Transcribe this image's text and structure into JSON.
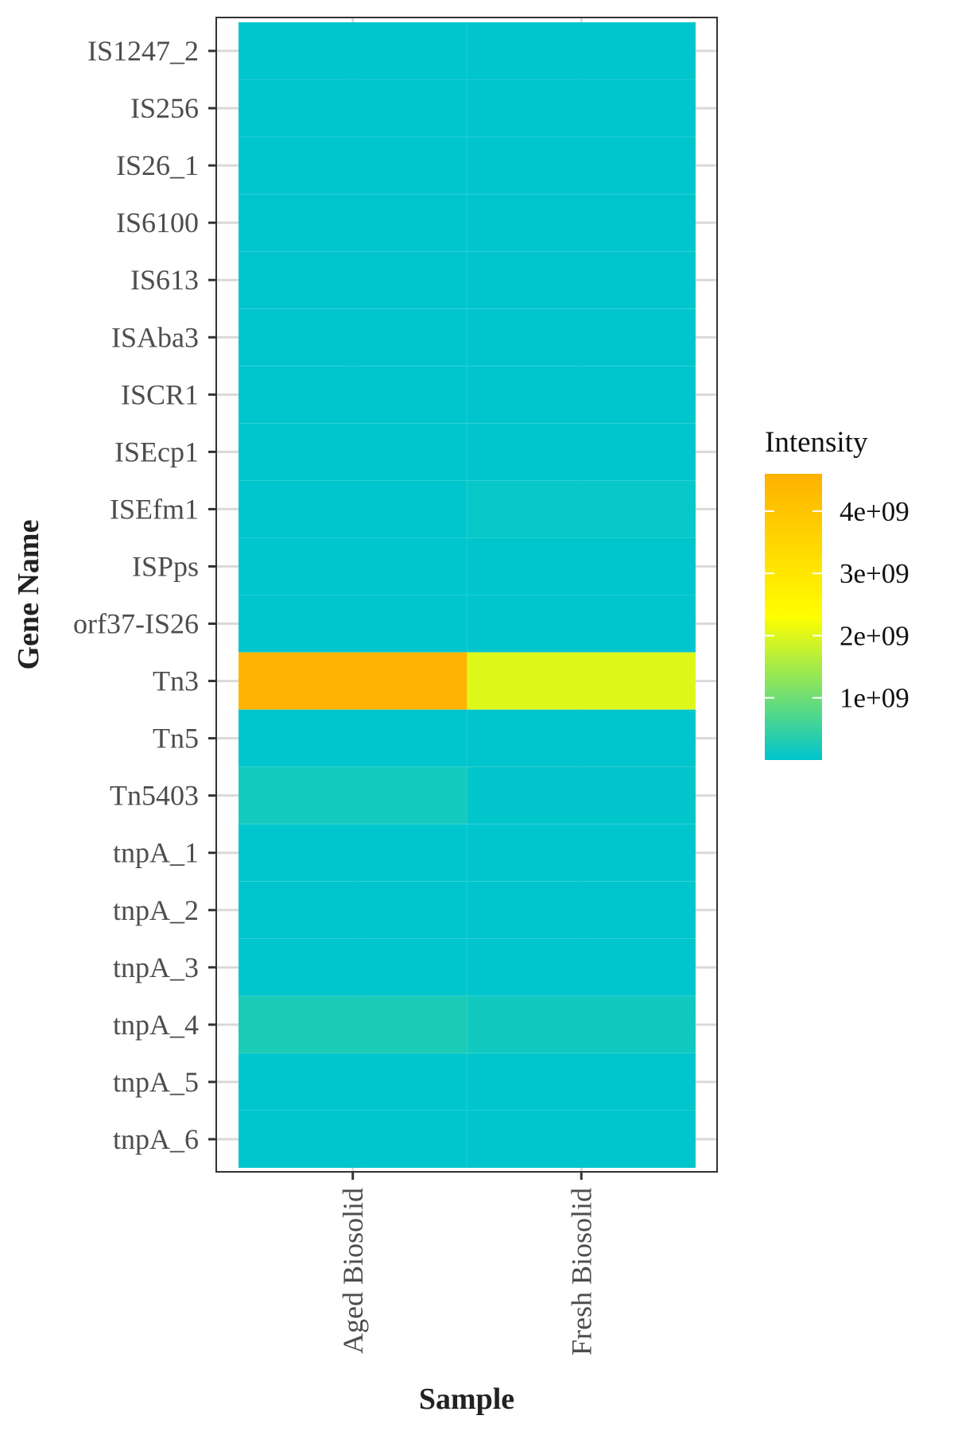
{
  "chart_data": {
    "type": "heatmap",
    "xlabel": "Sample",
    "ylabel": "Gene Name",
    "x": [
      "Aged Biosolid",
      "Fresh Biosolid"
    ],
    "y": [
      "IS1247_2",
      "IS256",
      "IS26_1",
      "IS6100",
      "IS613",
      "ISAba3",
      "ISCR1",
      "ISEcp1",
      "ISEfm1",
      "ISPps",
      "orf37-IS26",
      "Tn3",
      "Tn5",
      "Tn5403",
      "tnpA_1",
      "tnpA_2",
      "tnpA_3",
      "tnpA_4",
      "tnpA_5",
      "tnpA_6"
    ],
    "values": [
      [
        0,
        0
      ],
      [
        0,
        0
      ],
      [
        0,
        0
      ],
      [
        0,
        0
      ],
      [
        0,
        0
      ],
      [
        0,
        0
      ],
      [
        0,
        0
      ],
      [
        0,
        0
      ],
      [
        10000000,
        60000000
      ],
      [
        0,
        0
      ],
      [
        0,
        0
      ],
      [
        4500000000,
        2000000000
      ],
      [
        0,
        0
      ],
      [
        180000000,
        20000000
      ],
      [
        0,
        0
      ],
      [
        0,
        0
      ],
      [
        0,
        0
      ],
      [
        250000000,
        150000000
      ],
      [
        0,
        0
      ],
      [
        0,
        0
      ]
    ],
    "grid": true,
    "legend": {
      "title": "Intensity",
      "position": "right",
      "ticks": [
        1000000000,
        2000000000,
        3000000000,
        4000000000
      ],
      "tick_labels": [
        "1e+09",
        "2e+09",
        "3e+09",
        "4e+09"
      ],
      "range": [
        0,
        4600000000
      ],
      "colors": [
        "#00c5cd",
        "#ffff00",
        "#ffb000"
      ]
    }
  }
}
